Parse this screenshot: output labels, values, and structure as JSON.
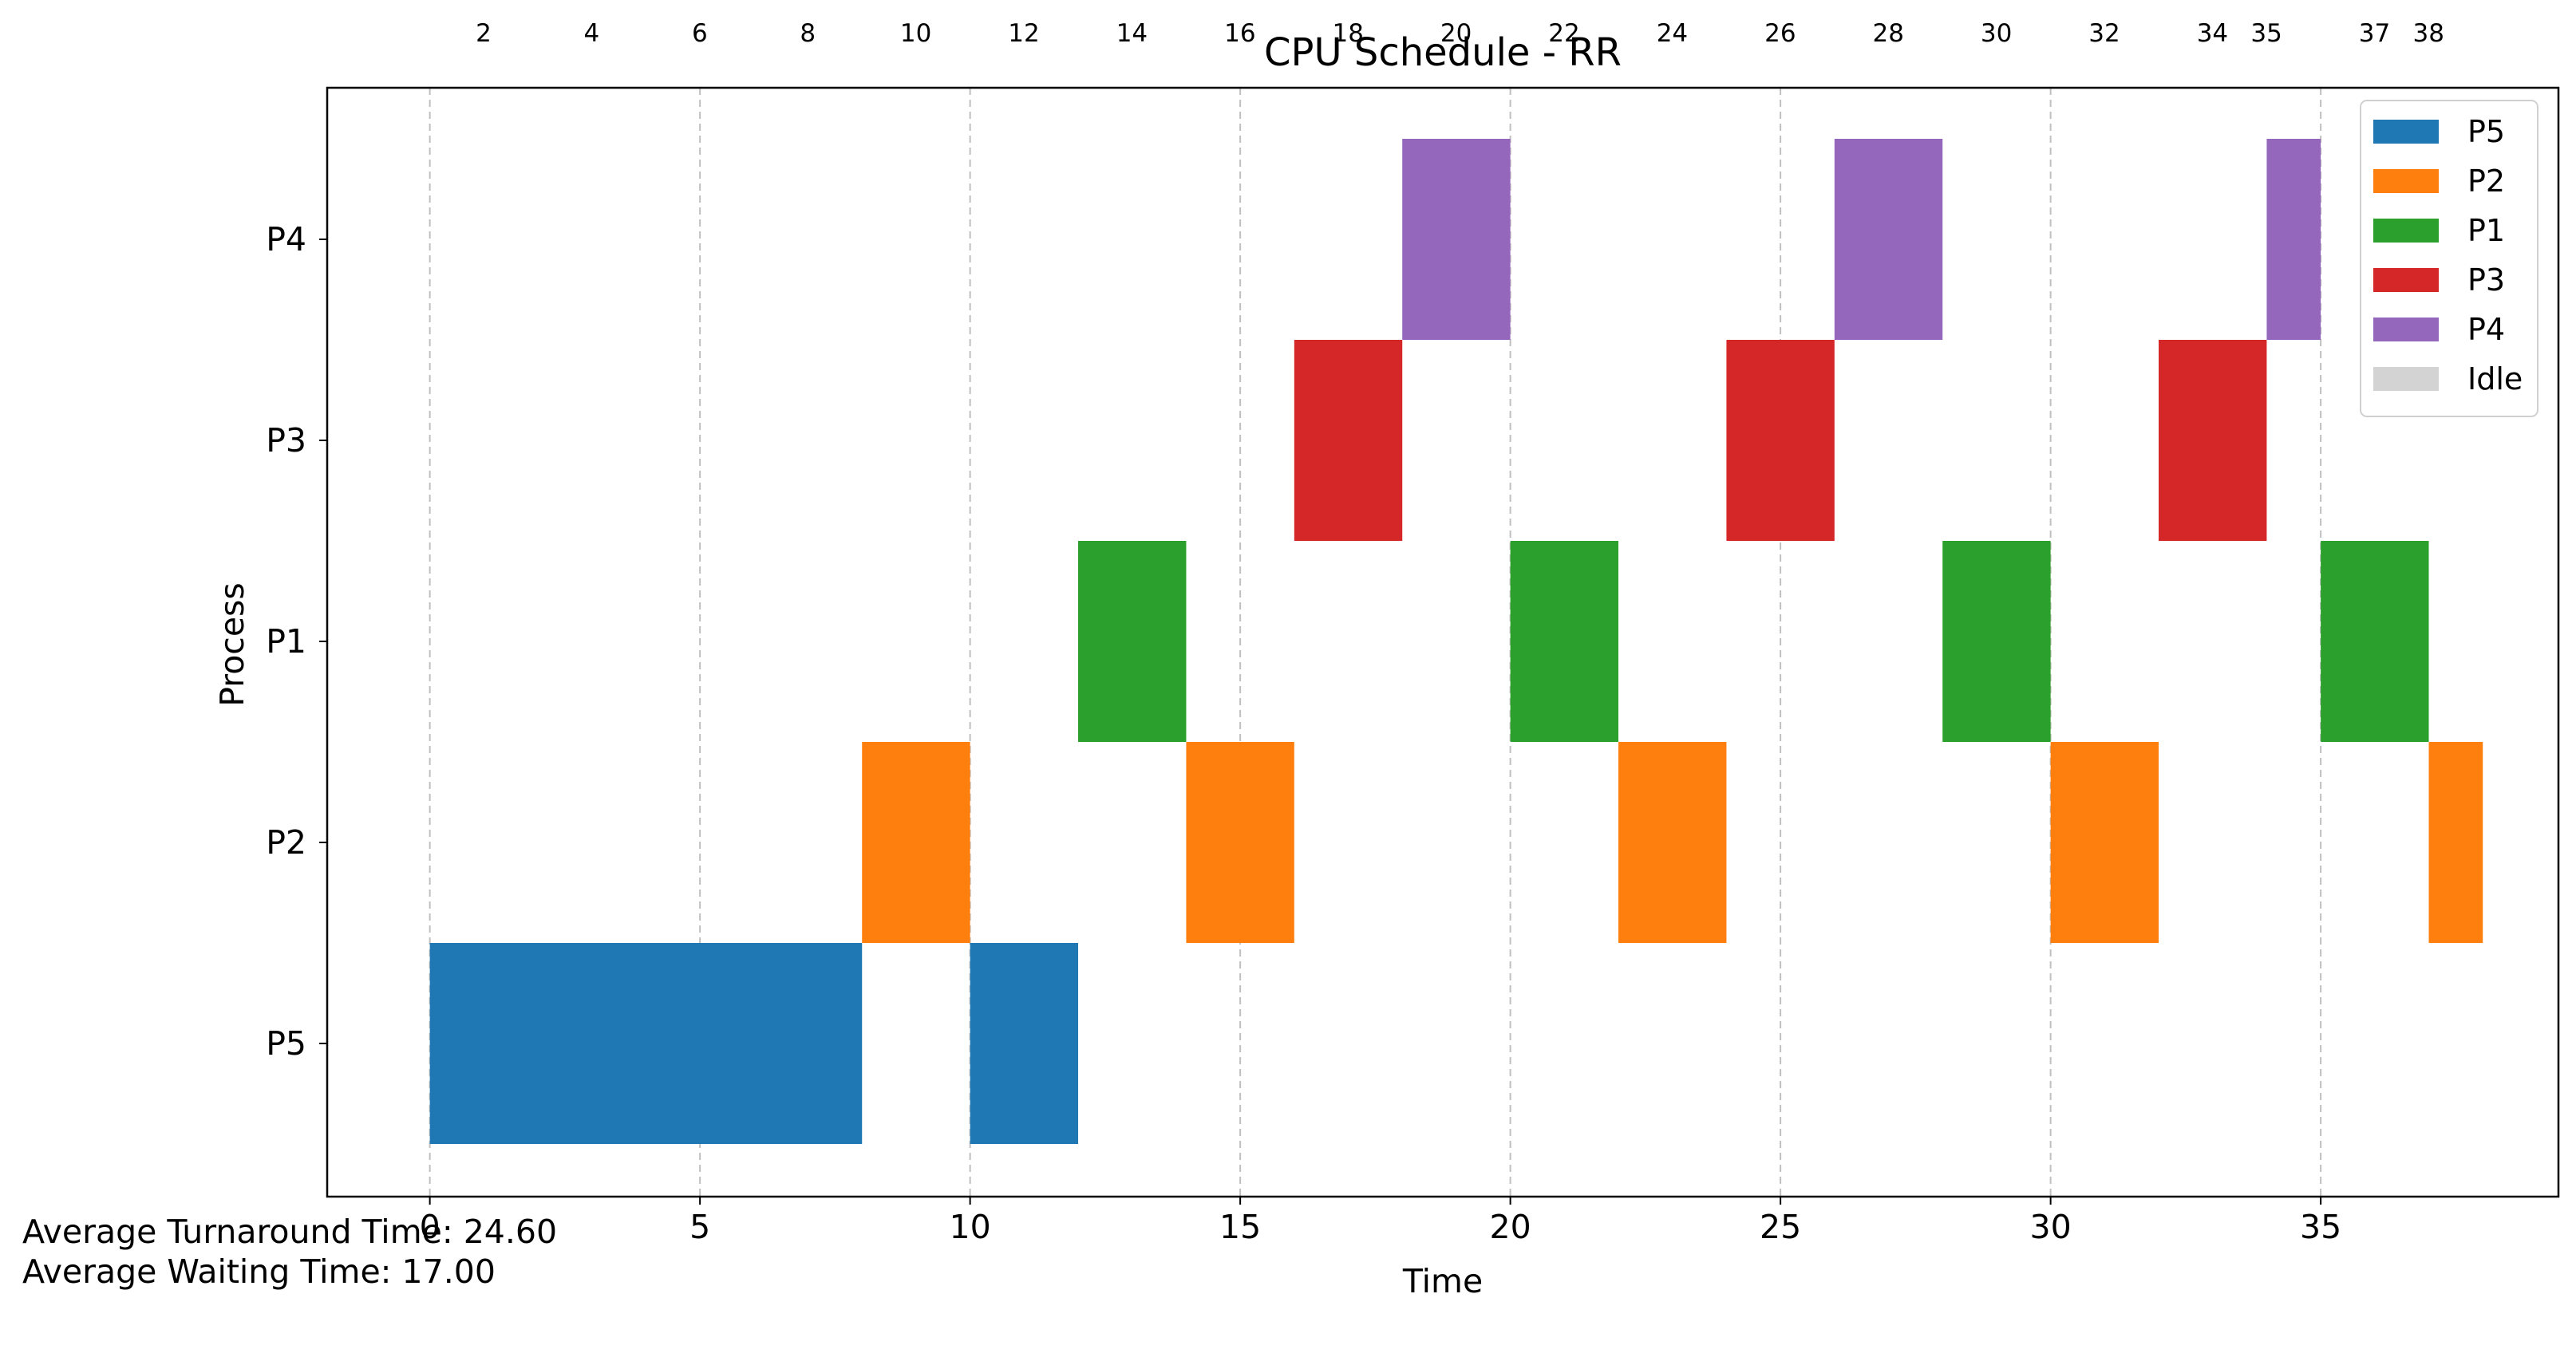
{
  "chart_data": {
    "type": "gantt",
    "title": "CPU Schedule - RR",
    "xlabel": "Time",
    "ylabel": "Process",
    "xlim": [
      -1.9,
      39.4
    ],
    "xticks": [
      0,
      5,
      10,
      15,
      20,
      25,
      30,
      35
    ],
    "top_ticks": [
      2,
      4,
      6,
      8,
      10,
      12,
      14,
      16,
      18,
      20,
      22,
      24,
      26,
      28,
      30,
      32,
      34,
      35,
      37,
      38
    ],
    "processes": [
      "P5",
      "P2",
      "P1",
      "P3",
      "P4"
    ],
    "grid": "vertical dashed",
    "legend": {
      "placement": "upper right",
      "entries": [
        {
          "name": "P5",
          "color": "#1f77b4"
        },
        {
          "name": "P2",
          "color": "#ff7f0e"
        },
        {
          "name": "P1",
          "color": "#2ca02c"
        },
        {
          "name": "P3",
          "color": "#d62728"
        },
        {
          "name": "P4",
          "color": "#9467bd"
        },
        {
          "name": "Idle",
          "color": "#d3d3d3"
        }
      ]
    },
    "segments": [
      {
        "process": "P5",
        "start": 0,
        "end": 8
      },
      {
        "process": "P2",
        "start": 8,
        "end": 10
      },
      {
        "process": "P5",
        "start": 10,
        "end": 12
      },
      {
        "process": "P1",
        "start": 12,
        "end": 14
      },
      {
        "process": "P2",
        "start": 14,
        "end": 16
      },
      {
        "process": "P3",
        "start": 16,
        "end": 18
      },
      {
        "process": "P4",
        "start": 18,
        "end": 20
      },
      {
        "process": "P1",
        "start": 20,
        "end": 22
      },
      {
        "process": "P2",
        "start": 22,
        "end": 24
      },
      {
        "process": "P3",
        "start": 24,
        "end": 26
      },
      {
        "process": "P4",
        "start": 26,
        "end": 28
      },
      {
        "process": "P1",
        "start": 28,
        "end": 30
      },
      {
        "process": "P2",
        "start": 30,
        "end": 32
      },
      {
        "process": "P3",
        "start": 32,
        "end": 34
      },
      {
        "process": "P4",
        "start": 34,
        "end": 35
      },
      {
        "process": "P1",
        "start": 35,
        "end": 37
      },
      {
        "process": "P2",
        "start": 37,
        "end": 38
      }
    ]
  },
  "footer": {
    "avg_turnaround": "Average Turnaround Time: 24.60",
    "avg_waiting": "Average Waiting Time: 17.00"
  }
}
